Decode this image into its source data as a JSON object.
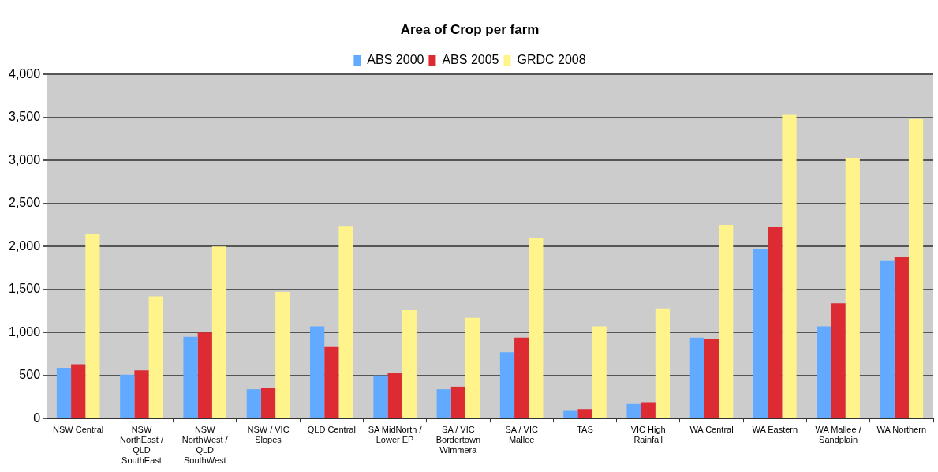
{
  "chart_data": {
    "type": "bar",
    "title": "Area of Crop per farm",
    "categories": [
      "NSW Central",
      "NSW NorthEast / QLD SouthEast",
      "NSW NorthWest / QLD SouthWest",
      "NSW / VIC Slopes",
      "QLD Central",
      "SA MidNorth / Lower EP",
      "SA / VIC Bordertown Wimmera",
      "SA / VIC Mallee",
      "TAS",
      "VIC High Rainfall",
      "WA Central",
      "WA Eastern",
      "WA Mallee / Sandplain",
      "WA Northern"
    ],
    "series": [
      {
        "name": "ABS 2000",
        "color": "#62aaff",
        "values": [
          590,
          510,
          950,
          340,
          1070,
          500,
          340,
          770,
          90,
          170,
          940,
          1970,
          1070,
          1830
        ]
      },
      {
        "name": "ABS 2005",
        "color": "#dd2b33",
        "values": [
          630,
          560,
          1000,
          360,
          840,
          530,
          370,
          940,
          110,
          190,
          930,
          2230,
          1340,
          1880
        ]
      },
      {
        "name": "GRDC 2008",
        "color": "#fff38c",
        "values": [
          2140,
          1420,
          2000,
          1470,
          2240,
          1260,
          1170,
          2100,
          1070,
          1280,
          2250,
          3530,
          3030,
          3480
        ]
      }
    ],
    "ylim": [
      0,
      4000
    ],
    "yticks": [
      {
        "value": 0,
        "label": "0"
      },
      {
        "value": 500,
        "label": "500"
      },
      {
        "value": 1000,
        "label": "1,000"
      },
      {
        "value": 1500,
        "label": "1,500"
      },
      {
        "value": 2000,
        "label": "2,000"
      },
      {
        "value": 2500,
        "label": "2,500"
      },
      {
        "value": 3000,
        "label": "3,000"
      },
      {
        "value": 3500,
        "label": "3,500"
      },
      {
        "value": 4000,
        "label": "4,000"
      }
    ],
    "grid": "y",
    "legend": "top"
  }
}
